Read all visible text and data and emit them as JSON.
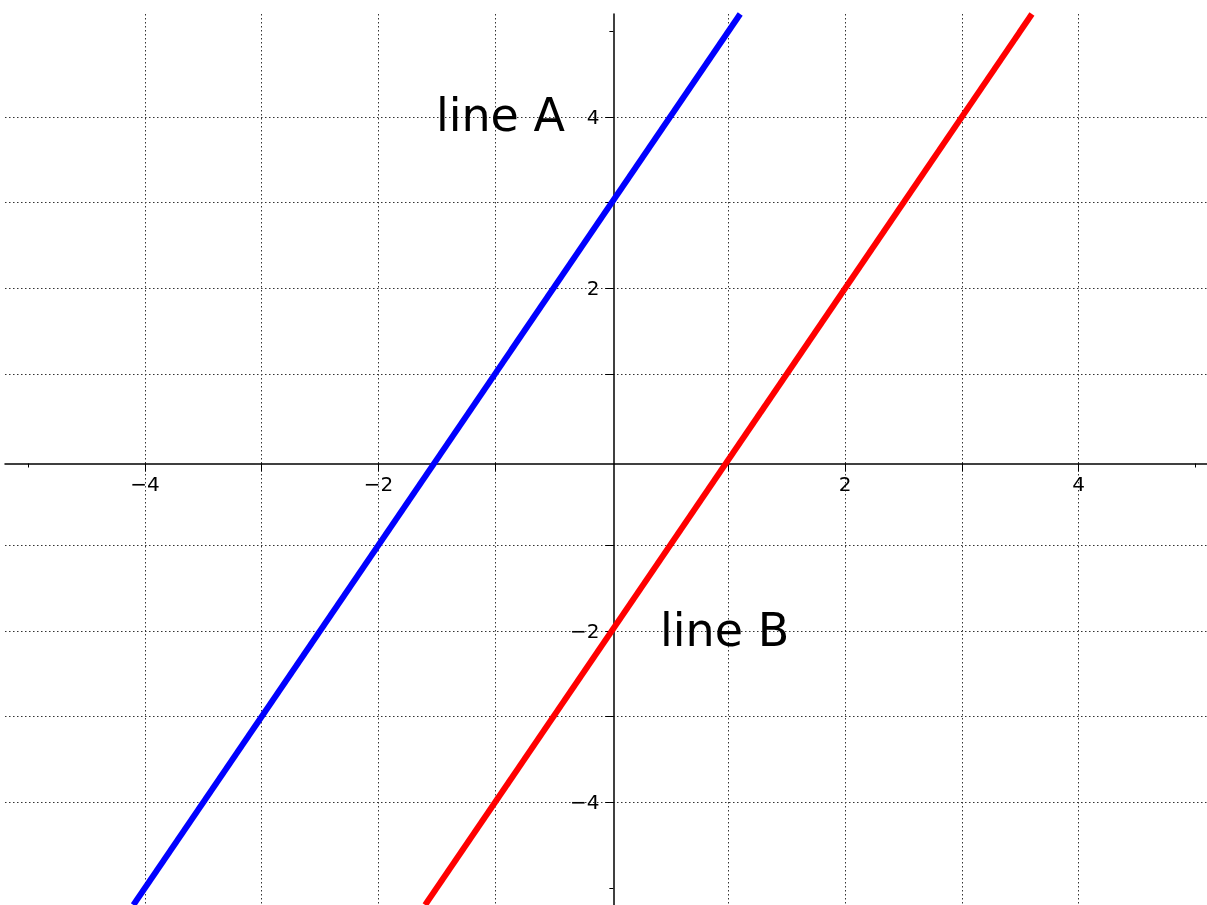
{
  "chart_data": {
    "type": "line",
    "series": [
      {
        "color": "#0000ff",
        "x": [
          -4.1,
          1.1
        ],
        "values": [
          -5.2,
          5.2
        ]
      },
      {
        "color": "#ff0000",
        "x": [
          -1.6,
          3.6
        ],
        "values": [
          -5.2,
          5.2
        ]
      }
    ],
    "xlim": [
      -5.2,
      5.1
    ],
    "ylim": [
      -5.2,
      5.2
    ],
    "xticks": [
      {
        "value": -4,
        "label": "−4"
      },
      {
        "value": -3,
        "label": null
      },
      {
        "value": -2,
        "label": "−2"
      },
      {
        "value": -1,
        "label": null
      },
      {
        "value": 1,
        "label": null
      },
      2,
      {
        "value": 3,
        "label": null
      },
      4
    ],
    "yticks": [
      {
        "value": -4,
        "label": "−4"
      },
      {
        "value": -3,
        "label": null
      },
      {
        "value": -2,
        "label": "−2"
      },
      {
        "value": -1,
        "label": null
      },
      {
        "value": 1,
        "label": null
      },
      2,
      {
        "value": 3,
        "label": null
      },
      4
    ],
    "grid": true,
    "marker": "none",
    "line_style": "solid",
    "annotations": [
      "line A",
      "line B"
    ]
  }
}
